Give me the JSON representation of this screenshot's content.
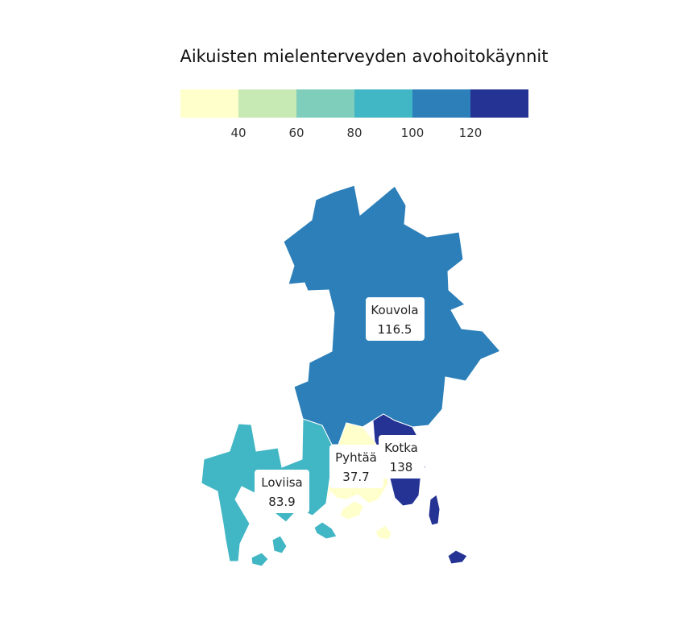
{
  "title": "Aikuisten mielenterveyden avohoitokäynnit",
  "legend": {
    "bins": [
      {
        "color": "#ffffcc"
      },
      {
        "color": "#c7e9b4"
      },
      {
        "color": "#7fcdbb"
      },
      {
        "color": "#41b6c4"
      },
      {
        "color": "#2c7fb8"
      },
      {
        "color": "#253494"
      }
    ],
    "ticks": [
      "40",
      "60",
      "80",
      "100",
      "120"
    ]
  },
  "regions": [
    {
      "name": "Kouvola",
      "value": "116.5",
      "color": "#2c7fb8"
    },
    {
      "name": "Kotka",
      "value": "138",
      "color": "#253494"
    },
    {
      "name": "Pyhtää",
      "value": "37.7",
      "color": "#ffffcc"
    },
    {
      "name": "Loviisa",
      "value": "83.9",
      "color": "#41b6c4"
    }
  ]
}
